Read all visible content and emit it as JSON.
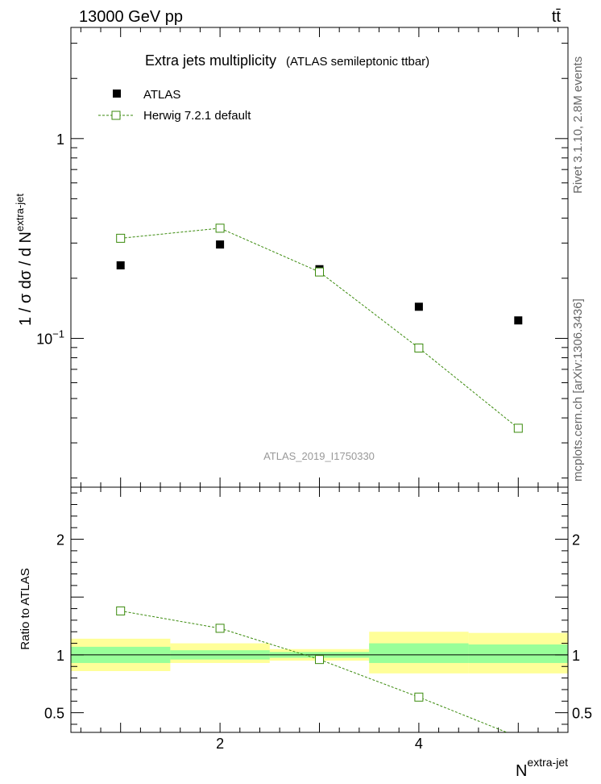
{
  "header": {
    "left_label": "13000 GeV pp",
    "right_label": "tt̄"
  },
  "side_labels": {
    "rivet": "Rivet 3.1.10, 2.8M events",
    "source": "mcplots.cern.ch [arXiv:1306.3436]"
  },
  "chart_data": {
    "type": "scatter",
    "title": "Extra jets multiplicity",
    "subtitle": "(ATLAS semileptonic ttbar)",
    "watermark": "ATLAS_2019_I1750330",
    "xlabel": "N",
    "xlabel_superscript": "extra-jet",
    "xlim": [
      0.5,
      5.5
    ],
    "x_ticks": [
      2,
      4
    ],
    "main": {
      "ylabel": "1 / σ dσ / d N",
      "ylabel_superscript": "extra-jet",
      "yscale": "log",
      "ylim": [
        0.018,
        3.6
      ],
      "y_tick_labels": [
        {
          "value": 1,
          "label": "1"
        },
        {
          "value": 0.1,
          "label": "10",
          "exponent": "−1"
        }
      ],
      "legend_position": "top-left",
      "series": [
        {
          "name": "ATLAS",
          "marker": "filled-square",
          "color": "#000000",
          "x": [
            1,
            2,
            3,
            4,
            5
          ],
          "y": [
            0.232,
            0.295,
            0.222,
            0.144,
            0.123
          ]
        },
        {
          "name": "Herwig 7.2.1 default",
          "marker": "open-square",
          "line": "dashed",
          "color": "#3a8a0c",
          "x": [
            1,
            2,
            3,
            4,
            5
          ],
          "y": [
            0.317,
            0.356,
            0.215,
            0.0895,
            0.0355
          ]
        }
      ]
    },
    "ratio": {
      "ylabel": "Ratio to ATLAS",
      "ylim": [
        0.33,
        2.45
      ],
      "y_tick_labels": [
        {
          "value": 2,
          "label": "2"
        },
        {
          "value": 1,
          "label": "1"
        },
        {
          "value": 0.5,
          "label": "0.5"
        }
      ],
      "bands": [
        {
          "x": [
            0.5,
            1.5
          ],
          "inner": [
            0.93,
            1.07
          ],
          "outer": [
            0.86,
            1.14
          ]
        },
        {
          "x": [
            1.5,
            2.5
          ],
          "inner": [
            0.96,
            1.04
          ],
          "outer": [
            0.93,
            1.1
          ]
        },
        {
          "x": [
            2.5,
            3.5
          ],
          "inner": [
            0.975,
            1.025
          ],
          "outer": [
            0.95,
            1.05
          ]
        },
        {
          "x": [
            3.5,
            4.5
          ],
          "inner": [
            0.93,
            1.1
          ],
          "outer": [
            0.84,
            1.2
          ]
        },
        {
          "x": [
            4.5,
            5.5
          ],
          "inner": [
            0.93,
            1.09
          ],
          "outer": [
            0.84,
            1.19
          ]
        }
      ],
      "band_colors": {
        "inner": "#99ff99",
        "outer": "#ffff99"
      },
      "series": [
        {
          "name": "Herwig 7.2.1 default",
          "color": "#3a8a0c",
          "x": [
            1,
            2,
            3,
            4,
            5
          ],
          "y": [
            1.38,
            1.23,
            0.96,
            0.635,
            0.29
          ]
        }
      ]
    }
  }
}
